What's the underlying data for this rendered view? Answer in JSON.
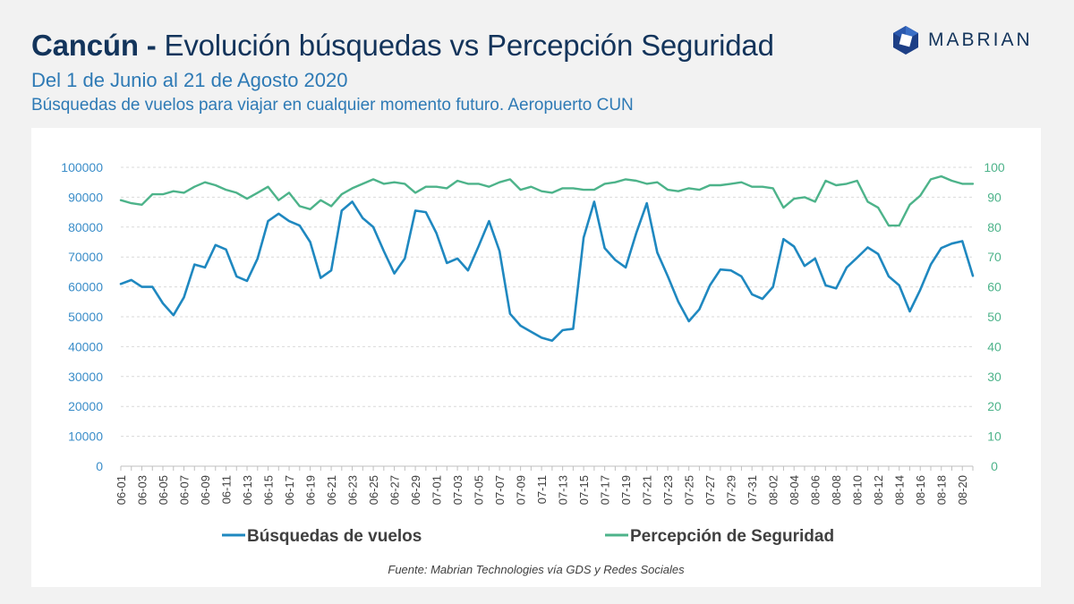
{
  "header": {
    "title_bold": "Cancún -",
    "title_rest": "Evolución búsquedas vs Percepción Seguridad",
    "subtitle": "Del 1 de Junio al 21 de Agosto 2020",
    "subtitle2": "Búsquedas de vuelos para viajar en cualquier momento futuro. Aeropuerto CUN"
  },
  "logo": {
    "text": "MABRIAN"
  },
  "source": "Fuente: Mabrian Technologies vía GDS y Redes Sociales",
  "colors": {
    "busquedas": "#1f88c0",
    "seguridad": "#4db38a",
    "title": "#13345b",
    "subtitle": "#2e7ab5"
  },
  "chart_data": {
    "type": "line",
    "x": [
      "06-01",
      "06-02",
      "06-03",
      "06-04",
      "06-05",
      "06-06",
      "06-07",
      "06-08",
      "06-09",
      "06-10",
      "06-11",
      "06-12",
      "06-13",
      "06-14",
      "06-15",
      "06-16",
      "06-17",
      "06-18",
      "06-19",
      "06-20",
      "06-21",
      "06-22",
      "06-23",
      "06-24",
      "06-25",
      "06-26",
      "06-27",
      "06-28",
      "06-29",
      "06-30",
      "07-01",
      "07-02",
      "07-03",
      "07-04",
      "07-05",
      "07-06",
      "07-07",
      "07-08",
      "07-09",
      "07-10",
      "07-11",
      "07-12",
      "07-13",
      "07-14",
      "07-15",
      "07-16",
      "07-17",
      "07-18",
      "07-19",
      "07-20",
      "07-21",
      "07-22",
      "07-23",
      "07-24",
      "07-25",
      "07-26",
      "07-27",
      "07-28",
      "07-29",
      "07-30",
      "07-31",
      "08-01",
      "08-02",
      "08-03",
      "08-04",
      "08-05",
      "08-06",
      "08-07",
      "08-08",
      "08-09",
      "08-10",
      "08-11",
      "08-12",
      "08-13",
      "08-14",
      "08-15",
      "08-16",
      "08-17",
      "08-18",
      "08-19",
      "08-20",
      "08-21"
    ],
    "x_tick_labels": [
      "06-01",
      "06-03",
      "06-05",
      "06-07",
      "06-09",
      "06-11",
      "06-13",
      "06-15",
      "06-17",
      "06-19",
      "06-21",
      "06-23",
      "06-25",
      "06-27",
      "06-29",
      "07-01",
      "07-03",
      "07-05",
      "07-07",
      "07-09",
      "07-11",
      "07-13",
      "07-15",
      "07-17",
      "07-19",
      "07-21",
      "07-23",
      "07-25",
      "07-27",
      "07-29",
      "07-31",
      "08-02",
      "08-04",
      "08-06",
      "08-08",
      "08-10",
      "08-12",
      "08-14",
      "08-16",
      "08-18",
      "08-20"
    ],
    "series": [
      {
        "name": "Búsquedas de vuelos",
        "axis": "left",
        "values": [
          61000,
          62300,
          60000,
          60000,
          54500,
          50500,
          56500,
          67500,
          66500,
          74000,
          72500,
          63500,
          62000,
          69500,
          82000,
          84500,
          82000,
          80500,
          75000,
          63000,
          65500,
          85500,
          88500,
          83000,
          80000,
          72000,
          64500,
          69500,
          85500,
          85000,
          78000,
          68000,
          69500,
          65500,
          73500,
          82000,
          72000,
          51000,
          47000,
          45000,
          43000,
          42000,
          45500,
          46000,
          76500,
          88500,
          73000,
          69000,
          66500,
          78000,
          88000,
          71500,
          63500,
          55000,
          48500,
          52500,
          60500,
          65800,
          65500,
          63500,
          57500,
          56000,
          60000,
          76000,
          73500,
          67000,
          69500,
          60500,
          59500,
          66500,
          69800,
          73200,
          71000,
          63500,
          60500,
          51800,
          59000,
          67500,
          73000,
          74500,
          75300,
          63700
        ]
      },
      {
        "name": "Percepción de Seguridad",
        "axis": "right",
        "values": [
          89,
          88,
          87.5,
          91,
          91,
          92,
          91.5,
          93.5,
          95,
          94,
          92.5,
          91.5,
          89.5,
          91.5,
          93.5,
          89,
          91.5,
          87,
          86,
          89,
          87,
          91,
          93,
          94.5,
          96,
          94.5,
          95,
          94.5,
          91.5,
          93.5,
          93.5,
          93,
          95.5,
          94.5,
          94.5,
          93.5,
          95,
          96,
          92.5,
          93.5,
          92,
          91.5,
          93,
          93,
          92.5,
          92.5,
          94.5,
          95,
          96,
          95.5,
          94.5,
          95,
          92.5,
          92,
          93,
          92.5,
          94,
          94,
          94.5,
          95,
          93.5,
          93.5,
          93,
          86.5,
          89.5,
          90,
          88.5,
          95.5,
          94,
          94.5,
          95.5,
          88.5,
          86.5,
          80.5,
          80.5,
          87.5,
          90.5,
          96,
          97,
          95.5,
          94.5,
          94.5
        ]
      }
    ],
    "y_left": {
      "min": 0,
      "max": 100000,
      "ticks": [
        0,
        10000,
        20000,
        30000,
        40000,
        50000,
        60000,
        70000,
        80000,
        90000,
        100000
      ]
    },
    "y_right": {
      "min": 0,
      "max": 100,
      "ticks": [
        0,
        10,
        20,
        30,
        40,
        50,
        60,
        70,
        80,
        90,
        100
      ]
    },
    "grid": true,
    "legend_position": "bottom"
  }
}
